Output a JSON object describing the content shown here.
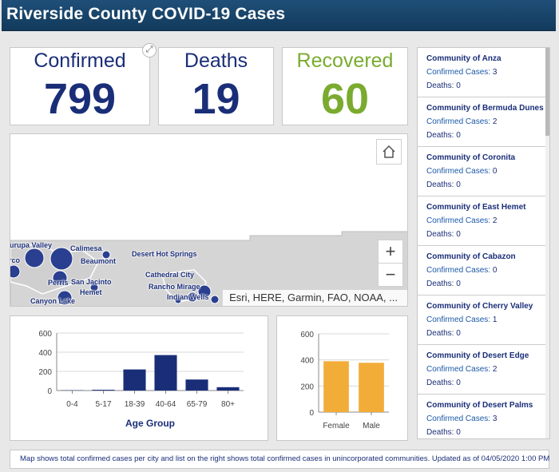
{
  "header": {
    "title": "Riverside County COVID-19 Cases"
  },
  "kpis": {
    "confirmed": {
      "label": "Confirmed",
      "value": "799"
    },
    "deaths": {
      "label": "Deaths",
      "value": "19"
    },
    "recovered": {
      "label": "Recovered",
      "value": "60"
    }
  },
  "map": {
    "attribution": "Esri, HERE, Garmin, FAO, NOAA, ...",
    "home_icon": "home-icon",
    "zoom_in_label": "+",
    "zoom_out_label": "−",
    "cities": [
      "Jurupa Valley",
      "Calimesa",
      "Desert Hot Springs",
      "Beaumont",
      "Cathedral City",
      "Perris",
      "San Jacinto",
      "Rancho Mirage",
      "Hemet",
      "Indian Wells",
      "Canyon Lake",
      "rco"
    ]
  },
  "communities": [
    {
      "name": "Community of Anza",
      "confirmed_label": "Confirmed Cases:",
      "confirmed": "3",
      "deaths_label": "Deaths:",
      "deaths": "0"
    },
    {
      "name": "Community of Bermuda Dunes",
      "confirmed_label": "Confirmed Cases:",
      "confirmed": "2",
      "deaths_label": "Deaths:",
      "deaths": "0"
    },
    {
      "name": "Community of Coronita",
      "confirmed_label": "Confirmed Cases:",
      "confirmed": "0",
      "deaths_label": "Deaths:",
      "deaths": "0"
    },
    {
      "name": "Community of East Hemet",
      "confirmed_label": "Confirmed Cases:",
      "confirmed": "2",
      "deaths_label": "Deaths:",
      "deaths": "0"
    },
    {
      "name": "Community of Cabazon",
      "confirmed_label": "Confirmed Cases:",
      "confirmed": "0",
      "deaths_label": "Deaths:",
      "deaths": "0"
    },
    {
      "name": "Community of Cherry Valley",
      "confirmed_label": "Confirmed Cases:",
      "confirmed": "1",
      "deaths_label": "Deaths:",
      "deaths": "0"
    },
    {
      "name": "Community of Desert Edge",
      "confirmed_label": "Confirmed Cases:",
      "confirmed": "2",
      "deaths_label": "Deaths:",
      "deaths": "0"
    },
    {
      "name": "Community of Desert Palms",
      "confirmed_label": "Confirmed Cases:",
      "confirmed": "3",
      "deaths_label": "Deaths:",
      "deaths": "0"
    }
  ],
  "footer": {
    "text": "Map shows total confirmed cases per city and list on the right shows total confirmed cases in unincorporated communities. Updated as of 04/05/2020 1:00 PM"
  },
  "colors": {
    "navy": "#1a2e78",
    "green": "#7aab2f",
    "orange": "#f2ac38",
    "header": "#1f4f78"
  },
  "chart_data": [
    {
      "type": "bar",
      "categories": [
        "0-4",
        "5-17",
        "18-39",
        "40-64",
        "65-79",
        "80+"
      ],
      "values": [
        3,
        8,
        220,
        370,
        115,
        35
      ],
      "xlabel": "Age Group",
      "ylabel": "",
      "ylim": [
        0,
        600
      ],
      "yticks": [
        0,
        200,
        400,
        600
      ],
      "color": "#1a2e78"
    },
    {
      "type": "bar",
      "categories": [
        "Female",
        "Male"
      ],
      "values": [
        390,
        378
      ],
      "xlabel": "",
      "ylabel": "",
      "ylim": [
        0,
        600
      ],
      "yticks": [
        0,
        200,
        400,
        600
      ],
      "color": "#f2ac38"
    }
  ]
}
